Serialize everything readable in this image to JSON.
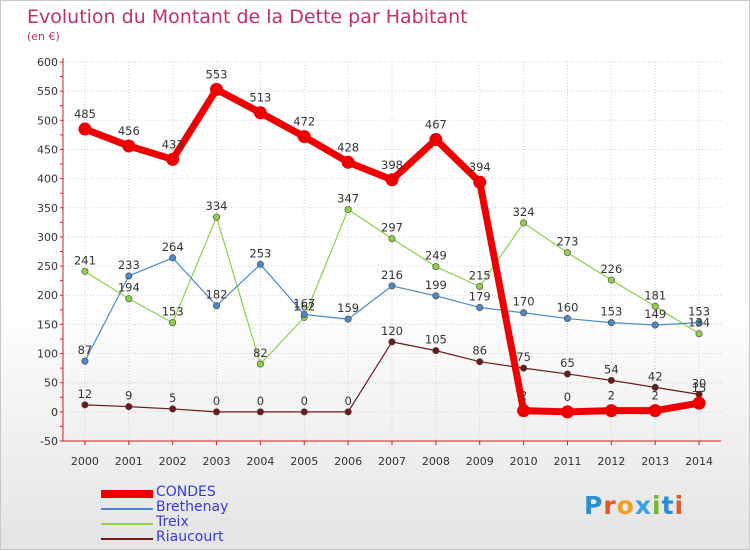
{
  "title": "Evolution du Montant de la Dette par Habitant",
  "subtitle": "(en €)",
  "logo": {
    "text": "Proxiti",
    "colors": [
      "#2a8fd0",
      "#e8552a",
      "#f0a020",
      "#3aa0e0",
      "#7ab530",
      "#2a8fd0",
      "#e05a30"
    ]
  },
  "chart_data": {
    "type": "line",
    "x": [
      "2000",
      "2001",
      "2002",
      "2003",
      "2004",
      "2005",
      "2006",
      "2007",
      "2008",
      "2009",
      "2010",
      "2011",
      "2012",
      "2013",
      "2014"
    ],
    "ylim": [
      -50,
      600
    ],
    "yticks": [
      "-50",
      "0",
      "50",
      "100",
      "150",
      "200",
      "250",
      "300",
      "350",
      "400",
      "450",
      "500",
      "550",
      "600"
    ],
    "grid": true,
    "legend": "bottom-left",
    "series": [
      {
        "name": "Riaucourt",
        "color": "#6b1a1a",
        "width": 1.2,
        "values": [
          12,
          9,
          5,
          0,
          0,
          0,
          0,
          120,
          105,
          86,
          75,
          65,
          54,
          42,
          30
        ],
        "labels": [
          "12",
          "9",
          "5",
          "0",
          "0",
          "0",
          "0",
          "120",
          "105",
          "86",
          "75",
          "65",
          "54",
          "42",
          "30"
        ]
      },
      {
        "name": "Treix",
        "color": "#8fd04a",
        "width": 1.2,
        "values": [
          241,
          194,
          153,
          334,
          82,
          162,
          347,
          297,
          249,
          215,
          324,
          273,
          226,
          181,
          134
        ],
        "labels": [
          "241",
          "194",
          "153",
          "334",
          "82",
          "162",
          "347",
          "297",
          "249",
          "215",
          "324",
          "273",
          "226",
          "181",
          "134"
        ]
      },
      {
        "name": "Brethenay",
        "color": "#4a8ac8",
        "width": 1.2,
        "values": [
          87,
          233,
          264,
          182,
          253,
          167,
          159,
          216,
          199,
          179,
          170,
          160,
          153,
          149,
          153
        ],
        "labels": [
          "87",
          "233",
          "264",
          "182",
          "253",
          "167",
          "159",
          "216",
          "199",
          "179",
          "170",
          "160",
          "153",
          "149",
          "153"
        ]
      },
      {
        "name": "CONDES",
        "color": "#ee0000",
        "width": 7,
        "values": [
          485,
          456,
          433,
          553,
          513,
          472,
          428,
          398,
          467,
          394,
          2,
          0,
          2,
          2,
          15
        ],
        "labels": [
          "485",
          "456",
          "433",
          "553",
          "513",
          "472",
          "428",
          "398",
          "467",
          "394",
          "2",
          "0",
          "2",
          "2",
          "15"
        ]
      }
    ],
    "legend_order": [
      "CONDES",
      "Brethenay",
      "Treix",
      "Riaucourt"
    ]
  }
}
